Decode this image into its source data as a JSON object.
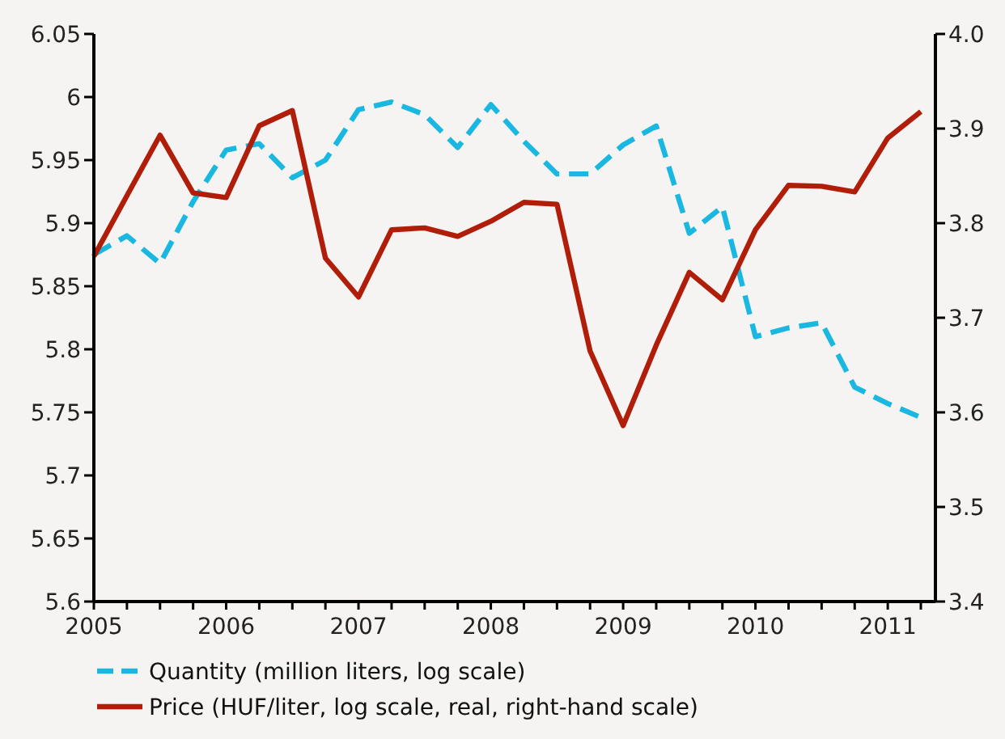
{
  "chart_data": {
    "type": "line",
    "x": [
      2005,
      2005.25,
      2005.5,
      2005.75,
      2006,
      2006.25,
      2006.5,
      2006.75,
      2007,
      2007.25,
      2007.5,
      2007.75,
      2008,
      2008.25,
      2008.5,
      2008.75,
      2009,
      2009.25,
      2009.5,
      2009.75,
      2010,
      2010.25,
      2010.5,
      2010.75,
      2011,
      2011.25
    ],
    "series": [
      {
        "name": "Quantity (million liters, log scale)",
        "color": "#1ab8e0",
        "line_style": "dashed",
        "values": [
          5.875,
          5.89,
          5.868,
          5.917,
          5.958,
          5.963,
          5.936,
          5.95,
          5.99,
          5.996,
          5.986,
          5.96,
          5.994,
          5.965,
          5.939,
          5.939,
          5.962,
          5.977,
          5.892,
          5.913,
          5.81,
          5.817,
          5.821,
          5.77,
          5.757,
          5.746
        ]
      },
      {
        "name": "Price (HUF/liter, log scale, real, right-hand scale)",
        "color": "#b01e0a",
        "line_style": "solid",
        "axis": "y2",
        "values": [
          3.765,
          3.829,
          3.893,
          3.832,
          3.827,
          3.903,
          3.919,
          3.763,
          3.722,
          3.793,
          3.795,
          3.786,
          3.802,
          3.822,
          3.82,
          3.665,
          3.586,
          3.671,
          3.748,
          3.719,
          3.793,
          3.84,
          3.839,
          3.833,
          3.89,
          3.918
        ]
      }
    ],
    "xlim": [
      2005,
      2011.36
    ],
    "xticks": [
      2005,
      {
        "value": 2005.25,
        "label": null
      },
      {
        "value": 2005.5,
        "label": null
      },
      {
        "value": 2005.75,
        "label": null
      },
      2006,
      {
        "value": 2006.25,
        "label": null
      },
      {
        "value": 2006.5,
        "label": null
      },
      {
        "value": 2006.75,
        "label": null
      },
      2007,
      {
        "value": 2007.25,
        "label": null
      },
      {
        "value": 2007.5,
        "label": null
      },
      {
        "value": 2007.75,
        "label": null
      },
      2008,
      {
        "value": 2008.25,
        "label": null
      },
      {
        "value": 2008.5,
        "label": null
      },
      {
        "value": 2008.75,
        "label": null
      },
      2009,
      {
        "value": 2009.25,
        "label": null
      },
      {
        "value": 2009.5,
        "label": null
      },
      {
        "value": 2009.75,
        "label": null
      },
      2010,
      {
        "value": 2010.25,
        "label": null
      },
      {
        "value": 2010.5,
        "label": null
      },
      {
        "value": 2010.75,
        "label": null
      },
      2011,
      {
        "value": 2011.25,
        "label": null
      }
    ],
    "ylim": [
      5.6,
      6.05
    ],
    "yticks": [
      5.6,
      5.65,
      5.7,
      5.75,
      5.8,
      5.85,
      5.9,
      5.95,
      6,
      6.05
    ],
    "y2lim": [
      3.4,
      4.0
    ],
    "y2ticks": [
      3.4,
      3.5,
      3.6,
      3.7,
      3.8,
      3.9,
      {
        "value": 4,
        "label": "4.0"
      }
    ],
    "grid": false,
    "legend": "bottom"
  }
}
